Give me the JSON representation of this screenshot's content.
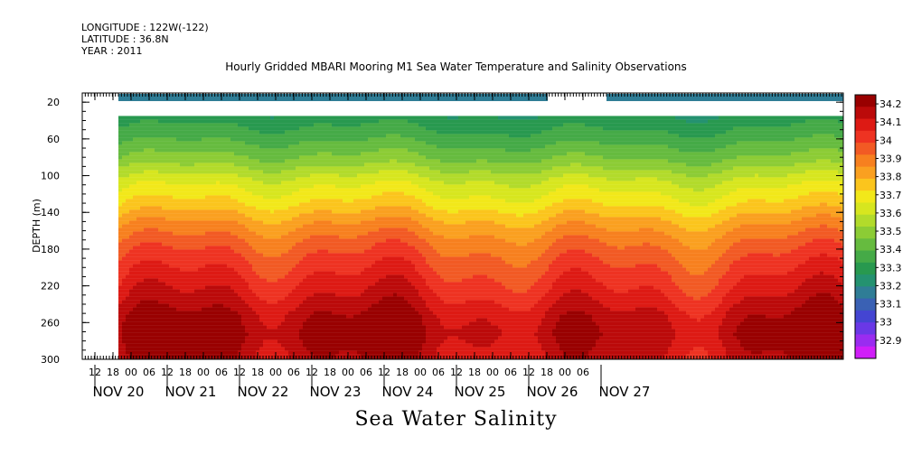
{
  "header": {
    "longitude": "LONGITUDE : 122W(-122)",
    "latitude": "LATITUDE : 36.8N",
    "year": "YEAR : 2011"
  },
  "chart_data": {
    "type": "heatmap",
    "title": "Hourly Gridded MBARI Mooring M1 Sea Water Temperature and Salinity Observations",
    "xlabel": "Sea Water Salinity",
    "ylabel": "DEPTH (m)",
    "y_ticks": [
      20,
      60,
      100,
      140,
      180,
      220,
      260,
      300
    ],
    "ylim": [
      300,
      10
    ],
    "x_hour_ticks": [
      "12",
      "18",
      "00",
      "06",
      "12",
      "18",
      "00",
      "06",
      "12",
      "18",
      "00",
      "06",
      "12",
      "18",
      "00",
      "06",
      "12",
      "18",
      "00",
      "06",
      "12",
      "18",
      "00",
      "06",
      "12",
      "18",
      "00",
      "06"
    ],
    "x_day_labels": [
      "NOV 20",
      "NOV 21",
      "NOV 22",
      "NOV 23",
      "NOV 24",
      "NOV 25",
      "NOV 26",
      "NOV 27"
    ],
    "colorbar": {
      "labels": [
        "34.2",
        "34.1",
        "34",
        "33.9",
        "33.8",
        "33.7",
        "33.6",
        "33.5",
        "33.4",
        "33.3",
        "33.2",
        "33.1",
        "33",
        "32.9"
      ],
      "colors": [
        "#990000",
        "#bb0a0a",
        "#dd1a14",
        "#ee3322",
        "#f25a24",
        "#f7801f",
        "#faa020",
        "#fbc51d",
        "#f2e81a",
        "#d7e61f",
        "#b2db2b",
        "#8ccc35",
        "#66bb3f",
        "#45aa47",
        "#28994f",
        "#249270",
        "#2f7d96",
        "#3a61b4",
        "#4445d2",
        "#6a38e6",
        "#9a2cf0",
        "#d01ef8"
      ]
    },
    "depth_profile": {
      "depths": [
        35,
        55,
        80,
        105,
        130,
        150,
        170,
        190,
        210,
        230,
        250,
        270,
        290,
        300
      ],
      "values": [
        33.35,
        33.42,
        33.52,
        33.66,
        33.76,
        33.86,
        33.94,
        34.0,
        34.05,
        34.1,
        34.16,
        34.19,
        34.16,
        34.15
      ]
    },
    "surface_value": 33.25,
    "grid": false,
    "colorbar_position": "right"
  }
}
